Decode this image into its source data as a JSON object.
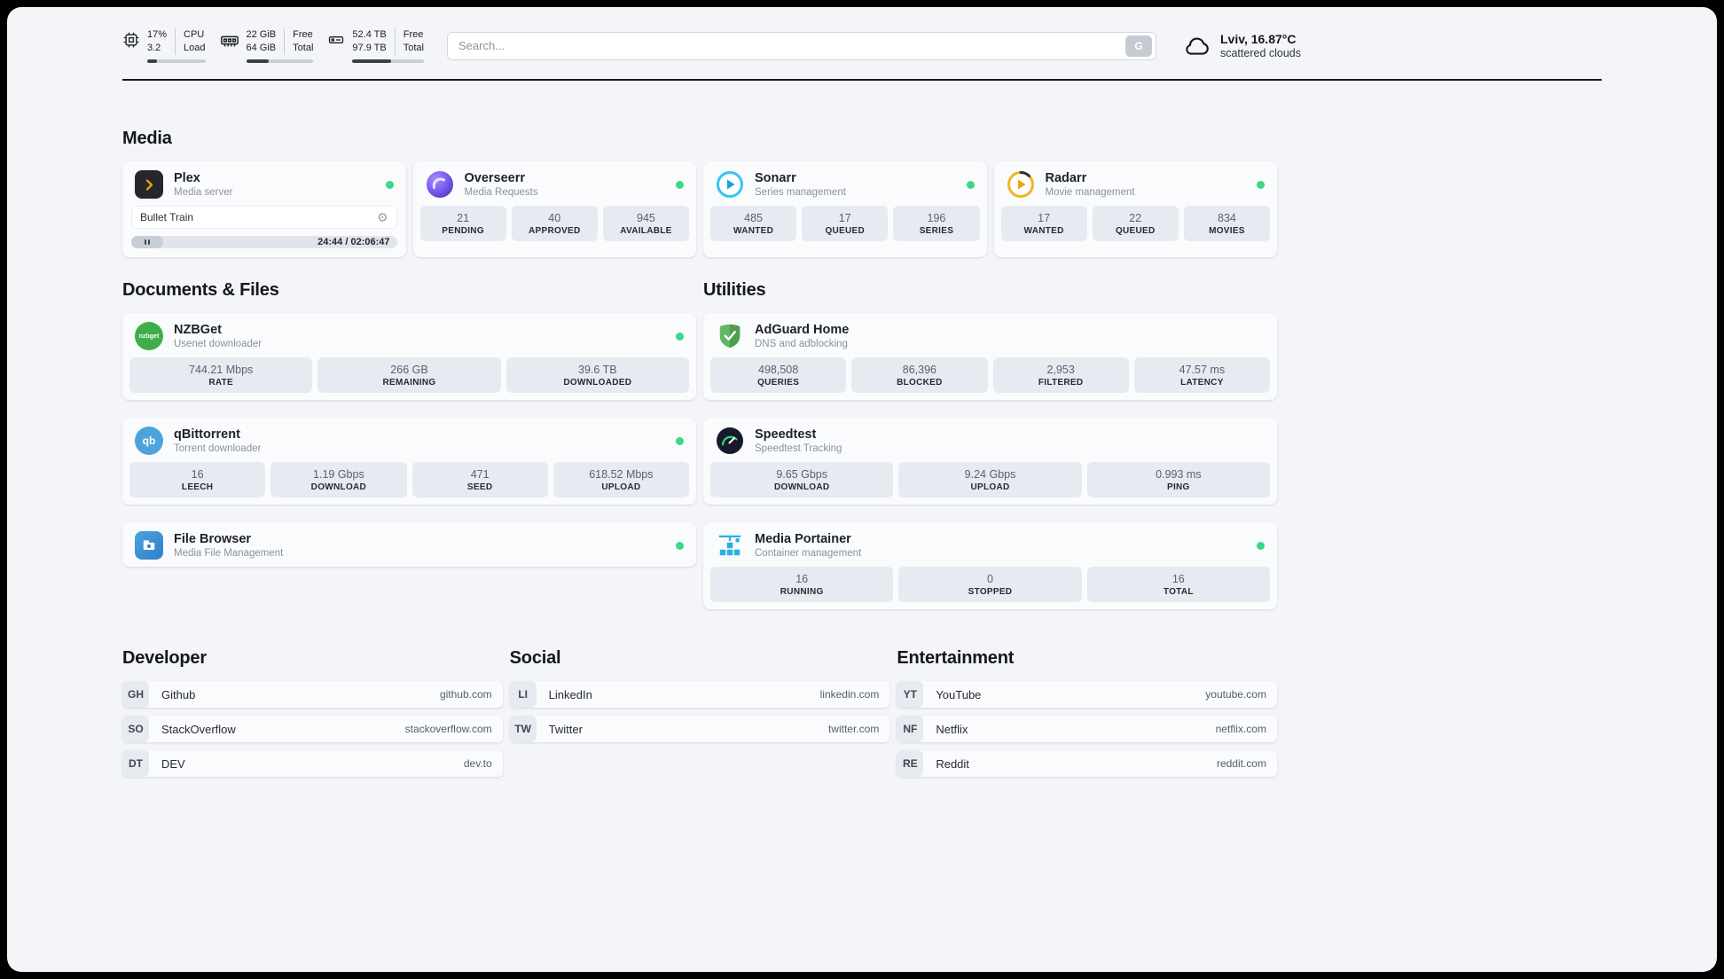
{
  "topbar": {
    "cpu": {
      "line1": "17%",
      "line2": "3.2",
      "label1": "CPU",
      "label2": "Load",
      "percent": 17
    },
    "ram": {
      "line1": "22 GiB",
      "line2": "64 GiB",
      "label1": "Free",
      "label2": "Total",
      "percent": 34
    },
    "disk": {
      "line1": "52.4 TB",
      "line2": "97.9 TB",
      "label1": "Free",
      "label2": "Total",
      "percent": 54
    },
    "search": {
      "placeholder": "Search...",
      "button_label": "G"
    },
    "weather": {
      "location": "Lviv, 16.87°C",
      "condition": "scattered clouds"
    }
  },
  "sections": {
    "media": {
      "title": "Media"
    },
    "documents": {
      "title": "Documents & Files"
    },
    "utilities": {
      "title": "Utilities"
    },
    "developer": {
      "title": "Developer"
    },
    "social": {
      "title": "Social"
    },
    "entertainment": {
      "title": "Entertainment"
    }
  },
  "apps": {
    "plex": {
      "name": "Plex",
      "desc": "Media server",
      "status": "online",
      "player": {
        "track_title": "Bullet Train",
        "time": "24:44 / 02:06:47"
      }
    },
    "overseerr": {
      "name": "Overseerr",
      "desc": "Media Requests",
      "status": "online",
      "stats": [
        {
          "value": "21",
          "label": "PENDING"
        },
        {
          "value": "40",
          "label": "APPROVED"
        },
        {
          "value": "945",
          "label": "AVAILABLE"
        }
      ]
    },
    "sonarr": {
      "name": "Sonarr",
      "desc": "Series management",
      "status": "online",
      "stats": [
        {
          "value": "485",
          "label": "WANTED"
        },
        {
          "value": "17",
          "label": "QUEUED"
        },
        {
          "value": "196",
          "label": "SERIES"
        }
      ]
    },
    "radarr": {
      "name": "Radarr",
      "desc": "Movie management",
      "status": "online",
      "stats": [
        {
          "value": "17",
          "label": "WANTED"
        },
        {
          "value": "22",
          "label": "QUEUED"
        },
        {
          "value": "834",
          "label": "MOVIES"
        }
      ]
    },
    "nzbget": {
      "name": "NZBGet",
      "desc": "Usenet downloader",
      "status": "online",
      "icon_text": "nzbget",
      "stats": [
        {
          "value": "744.21 Mbps",
          "label": "RATE"
        },
        {
          "value": "266 GB",
          "label": "REMAINING"
        },
        {
          "value": "39.6 TB",
          "label": "DOWNLOADED"
        }
      ]
    },
    "qbittorrent": {
      "name": "qBittorrent",
      "desc": "Torrent downloader",
      "status": "online",
      "icon_text": "qb",
      "stats": [
        {
          "value": "16",
          "label": "LEECH"
        },
        {
          "value": "1.19 Gbps",
          "label": "DOWNLOAD"
        },
        {
          "value": "471",
          "label": "SEED"
        },
        {
          "value": "618.52 Mbps",
          "label": "UPLOAD"
        }
      ]
    },
    "filebrowser": {
      "name": "File Browser",
      "desc": "Media File Management",
      "status": "online"
    },
    "adguard": {
      "name": "AdGuard Home",
      "desc": "DNS and adblocking",
      "stats": [
        {
          "value": "498,508",
          "label": "QUERIES"
        },
        {
          "value": "86,396",
          "label": "BLOCKED"
        },
        {
          "value": "2,953",
          "label": "FILTERED"
        },
        {
          "value": "47.57 ms",
          "label": "LATENCY"
        }
      ]
    },
    "speedtest": {
      "name": "Speedtest",
      "desc": "Speedtest Tracking",
      "stats": [
        {
          "value": "9.65 Gbps",
          "label": "DOWNLOAD"
        },
        {
          "value": "9.24 Gbps",
          "label": "UPLOAD"
        },
        {
          "value": "0.993 ms",
          "label": "PING"
        }
      ]
    },
    "portainer": {
      "name": "Media Portainer",
      "desc": "Container management",
      "status": "online",
      "stats": [
        {
          "value": "16",
          "label": "RUNNING"
        },
        {
          "value": "0",
          "label": "STOPPED"
        },
        {
          "value": "16",
          "label": "TOTAL"
        }
      ]
    }
  },
  "links": {
    "developer": [
      {
        "abbr": "GH",
        "name": "Github",
        "url": "github.com"
      },
      {
        "abbr": "SO",
        "name": "StackOverflow",
        "url": "stackoverflow.com"
      },
      {
        "abbr": "DT",
        "name": "DEV",
        "url": "dev.to"
      }
    ],
    "social": [
      {
        "abbr": "LI",
        "name": "LinkedIn",
        "url": "linkedin.com"
      },
      {
        "abbr": "TW",
        "name": "Twitter",
        "url": "twitter.com"
      }
    ],
    "entertainment": [
      {
        "abbr": "YT",
        "name": "YouTube",
        "url": "youtube.com"
      },
      {
        "abbr": "NF",
        "name": "Netflix",
        "url": "netflix.com"
      },
      {
        "abbr": "RE",
        "name": "Reddit",
        "url": "reddit.com"
      }
    ]
  },
  "colors": {
    "status_online": "#3ed58c",
    "plex_gold": "#e8a00c",
    "overseerr_purple": "#6d4ae3",
    "sonarr_blue": "#35c5f4",
    "radarr_gold": "#f0b429",
    "nzbget_green": "#3fae4a",
    "qbittorrent_blue": "#4da3dc",
    "filebrowser_blue": "#3487cc",
    "adguard_green": "#5fb760",
    "speedtest_dark": "#181a2c",
    "portainer_blue": "#29b1e3"
  }
}
